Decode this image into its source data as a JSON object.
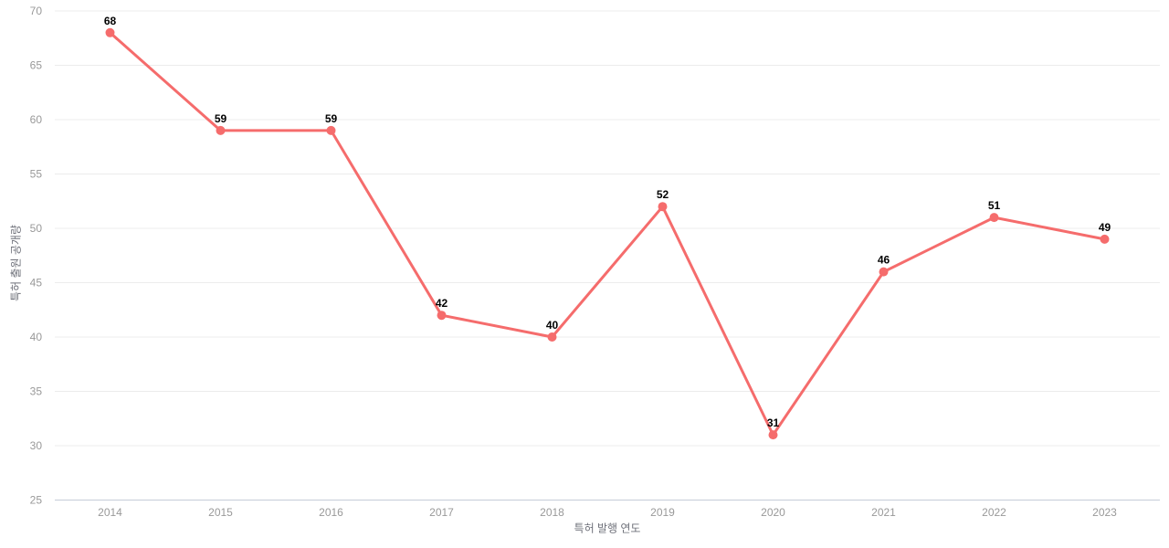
{
  "chart_data": {
    "type": "line",
    "title": "",
    "categories": [
      "2014",
      "2015",
      "2016",
      "2017",
      "2018",
      "2019",
      "2020",
      "2021",
      "2022",
      "2023"
    ],
    "series": [
      {
        "name": "특허 출원 공개량",
        "values": [
          68,
          59,
          59,
          42,
          40,
          52,
          31,
          46,
          51,
          49
        ]
      }
    ],
    "xlabel": "특허 발행 연도",
    "ylabel": "특허 출원 공개량",
    "ylim": [
      25,
      70
    ],
    "ytick_step": 5,
    "yticks": [
      25,
      30,
      35,
      40,
      45,
      50,
      55,
      60,
      65,
      70
    ],
    "grid": true,
    "legend_position": "none",
    "data_labels_visible": true,
    "colors": {
      "line": "#f56c6c",
      "marker": "#f56c6c",
      "gridline": "#ececec",
      "axis_line": "#c5cdd8",
      "tick_text": "#999999",
      "axis_title_text": "#6e7079",
      "data_label_text": "#000000",
      "background": "#ffffff"
    }
  }
}
